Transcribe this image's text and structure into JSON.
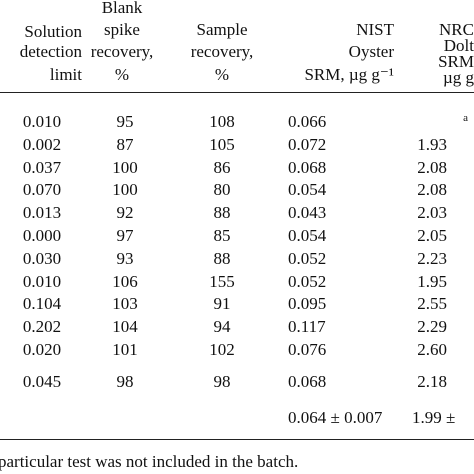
{
  "header": {
    "columns": [
      {
        "lines": [
          "Solution",
          "detection",
          "limit"
        ]
      },
      {
        "lines": [
          "Blank",
          "spike",
          "recovery,",
          "%"
        ]
      },
      {
        "lines": [
          "Sample",
          "recovery,",
          "%"
        ]
      },
      {
        "lines": [
          "NIST",
          "Oyster",
          "SRM, µg g⁻¹"
        ]
      },
      {
        "lines": [
          "NRC",
          "Dolt",
          "SRM",
          "µg g"
        ]
      }
    ]
  },
  "table": {
    "rows": [
      [
        "0.010",
        "95",
        "108",
        "0.066",
        "a"
      ],
      [
        "0.002",
        "87",
        "105",
        "0.072",
        "1.93"
      ],
      [
        "0.037",
        "100",
        "86",
        "0.068",
        "2.08"
      ],
      [
        "0.070",
        "100",
        "80",
        "0.054",
        "2.08"
      ],
      [
        "0.013",
        "92",
        "88",
        "0.043",
        "2.03"
      ],
      [
        "0.000",
        "97",
        "85",
        "0.054",
        "2.05"
      ],
      [
        "0.030",
        "93",
        "88",
        "0.052",
        "2.23"
      ],
      [
        "0.010",
        "106",
        "155",
        "0.052",
        "1.95"
      ],
      [
        "0.104",
        "103",
        "91",
        "0.095",
        "2.55"
      ],
      [
        "0.202",
        "104",
        "94",
        "0.117",
        "2.29"
      ],
      [
        "0.020",
        "101",
        "102",
        "0.076",
        "2.60"
      ],
      [
        "0.045",
        "98",
        "98",
        "0.068",
        "2.18"
      ],
      [
        null,
        null,
        null,
        "0.064 ± 0.007",
        "1.99 ±"
      ]
    ]
  },
  "footnote": "particular test was not included in the batch."
}
